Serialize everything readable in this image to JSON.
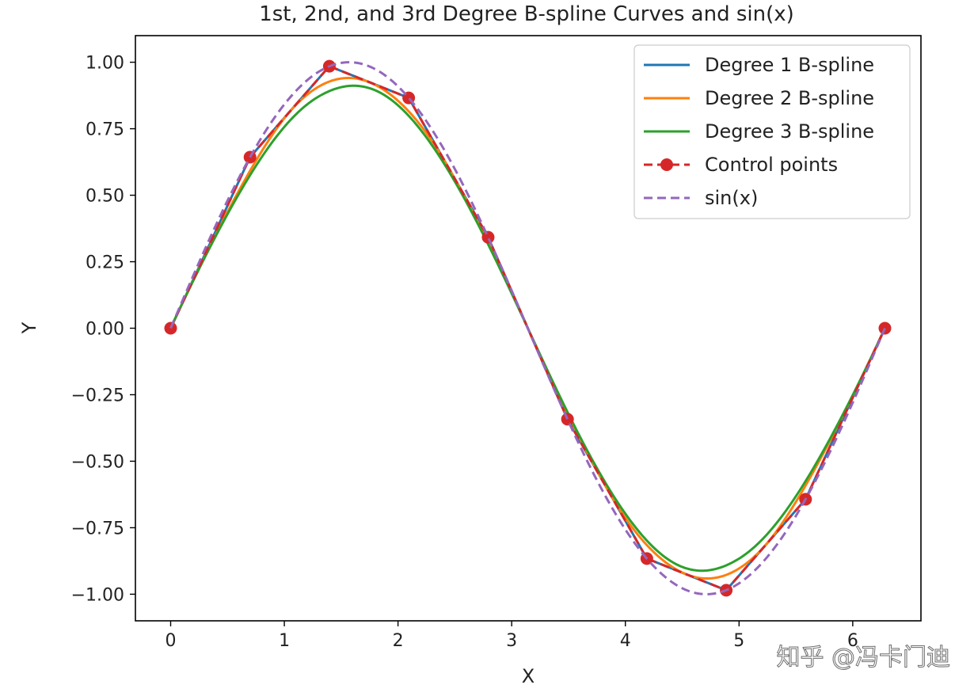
{
  "chart_data": {
    "type": "line",
    "title": "1st, 2nd, and 3rd Degree B-spline Curves and sin(x)",
    "xlabel": "X",
    "ylabel": "Y",
    "xlim": [
      -0.31,
      6.6
    ],
    "ylim": [
      -1.1,
      1.1
    ],
    "xticks": [
      0,
      1,
      2,
      3,
      4,
      5,
      6
    ],
    "yticks": [
      1.0,
      0.75,
      0.5,
      0.25,
      0.0,
      -0.25,
      -0.5,
      -0.75,
      -1.0
    ],
    "xtick_labels": [
      "0",
      "1",
      "2",
      "3",
      "4",
      "5",
      "6"
    ],
    "ytick_labels": [
      "1.00",
      "0.75",
      "0.50",
      "0.25",
      "0.00",
      "−0.25",
      "−0.50",
      "−0.75",
      "−1.00"
    ],
    "grid": false,
    "legend_position": "top-right",
    "control_points": {
      "x": [
        0,
        0.698,
        1.396,
        2.094,
        2.793,
        3.491,
        4.189,
        4.887,
        5.585,
        6.283
      ],
      "y": [
        0,
        0.643,
        0.985,
        0.866,
        0.342,
        -0.342,
        -0.866,
        -0.985,
        -0.643,
        0
      ]
    },
    "series": [
      {
        "name": "Degree 1 B-spline",
        "color": "#1f77b4",
        "style": "solid",
        "kind": "degree1"
      },
      {
        "name": "Degree 2 B-spline",
        "color": "#ff7f0e",
        "style": "solid",
        "kind": "degree2"
      },
      {
        "name": "Degree 3 B-spline",
        "color": "#2ca02c",
        "style": "solid",
        "kind": "degree3"
      },
      {
        "name": "Control points",
        "color": "#d62728",
        "style": "dashed-markers",
        "kind": "control"
      },
      {
        "name": "sin(x)",
        "color": "#9467bd",
        "style": "dashed",
        "kind": "sin",
        "x_range": [
          0,
          6.283
        ]
      }
    ]
  },
  "watermark": "知乎 @冯卡门迪"
}
